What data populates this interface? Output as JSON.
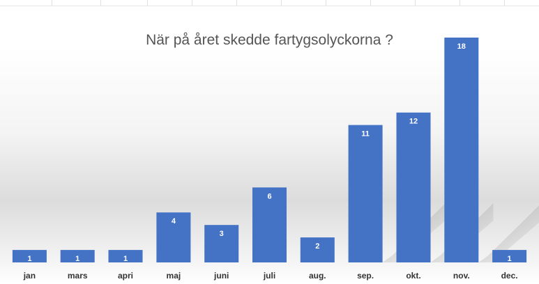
{
  "chart_data": {
    "type": "bar",
    "title": "När på året skedde fartygsolyckorna ?",
    "categories": [
      "jan",
      "mars",
      "apri",
      "maj",
      "juni",
      "juli",
      "aug.",
      "sep.",
      "okt.",
      "nov.",
      "dec."
    ],
    "values": [
      1,
      1,
      1,
      4,
      3,
      6,
      2,
      11,
      12,
      18,
      1
    ],
    "ylim": [
      0,
      18
    ],
    "grid": false,
    "legend": "none",
    "bar_color": "#4472c4",
    "label_color": "#ffffff",
    "tick_color": "#333333"
  }
}
